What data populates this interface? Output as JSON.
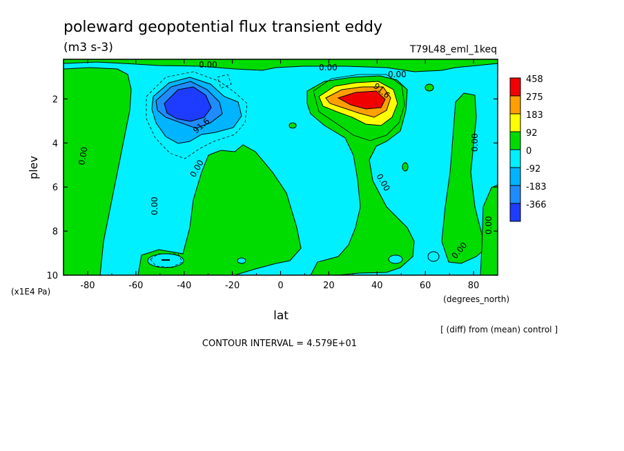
{
  "title": "poleward geopotential flux transient eddy",
  "units": "(m3 s-3)",
  "run_label": "T79L48_eml_1keq",
  "xlabel": "lat",
  "xunits": "(degrees_north)",
  "ylabel": "plev",
  "yunits": "(x1E4 Pa)",
  "footnote_diff": "[ (diff) from (mean) control ]",
  "contour_interval": "CONTOUR INTERVAL = 4.579E+01",
  "chart_data": {
    "type": "heatmap",
    "title": "poleward geopotential flux transient eddy",
    "xlabel": "lat",
    "ylabel": "plev",
    "xlim": [
      -90,
      90
    ],
    "ylim": [
      10,
      0.2
    ],
    "x_ticks": [
      -80,
      -60,
      -40,
      -20,
      0,
      20,
      40,
      60,
      80
    ],
    "x_tick_labels": [
      "-80",
      "-60",
      "-40",
      "-20",
      "0",
      "20",
      "40",
      "60",
      "80"
    ],
    "y_ticks": [
      2,
      4,
      6,
      8,
      10
    ],
    "y_tick_labels": [
      "2",
      "4",
      "6",
      "8",
      "10"
    ],
    "colorbar": {
      "levels": [
        "458",
        "275",
        "183",
        "92",
        "0",
        "-92",
        "-183",
        "-366"
      ],
      "colors": [
        "#f00000",
        "#ffa000",
        "#ffff00",
        "#00dc00",
        "#00f0ff",
        "#00b4ff",
        "#1e8cff",
        "#1e3cff"
      ]
    },
    "contour_labels": [
      "0.00",
      "0.00",
      "0.00",
      "0.00",
      "0.00",
      "0.00",
      "0.00",
      "0.00",
      "0.00",
      "0.00",
      "91.6",
      "91.6"
    ],
    "features": [
      {
        "name": "positive maximum",
        "lat": 36,
        "plev": 2.0,
        "value": 458
      },
      {
        "name": "negative minimum",
        "lat": -40,
        "plev": 2.2,
        "value": -366
      }
    ]
  }
}
